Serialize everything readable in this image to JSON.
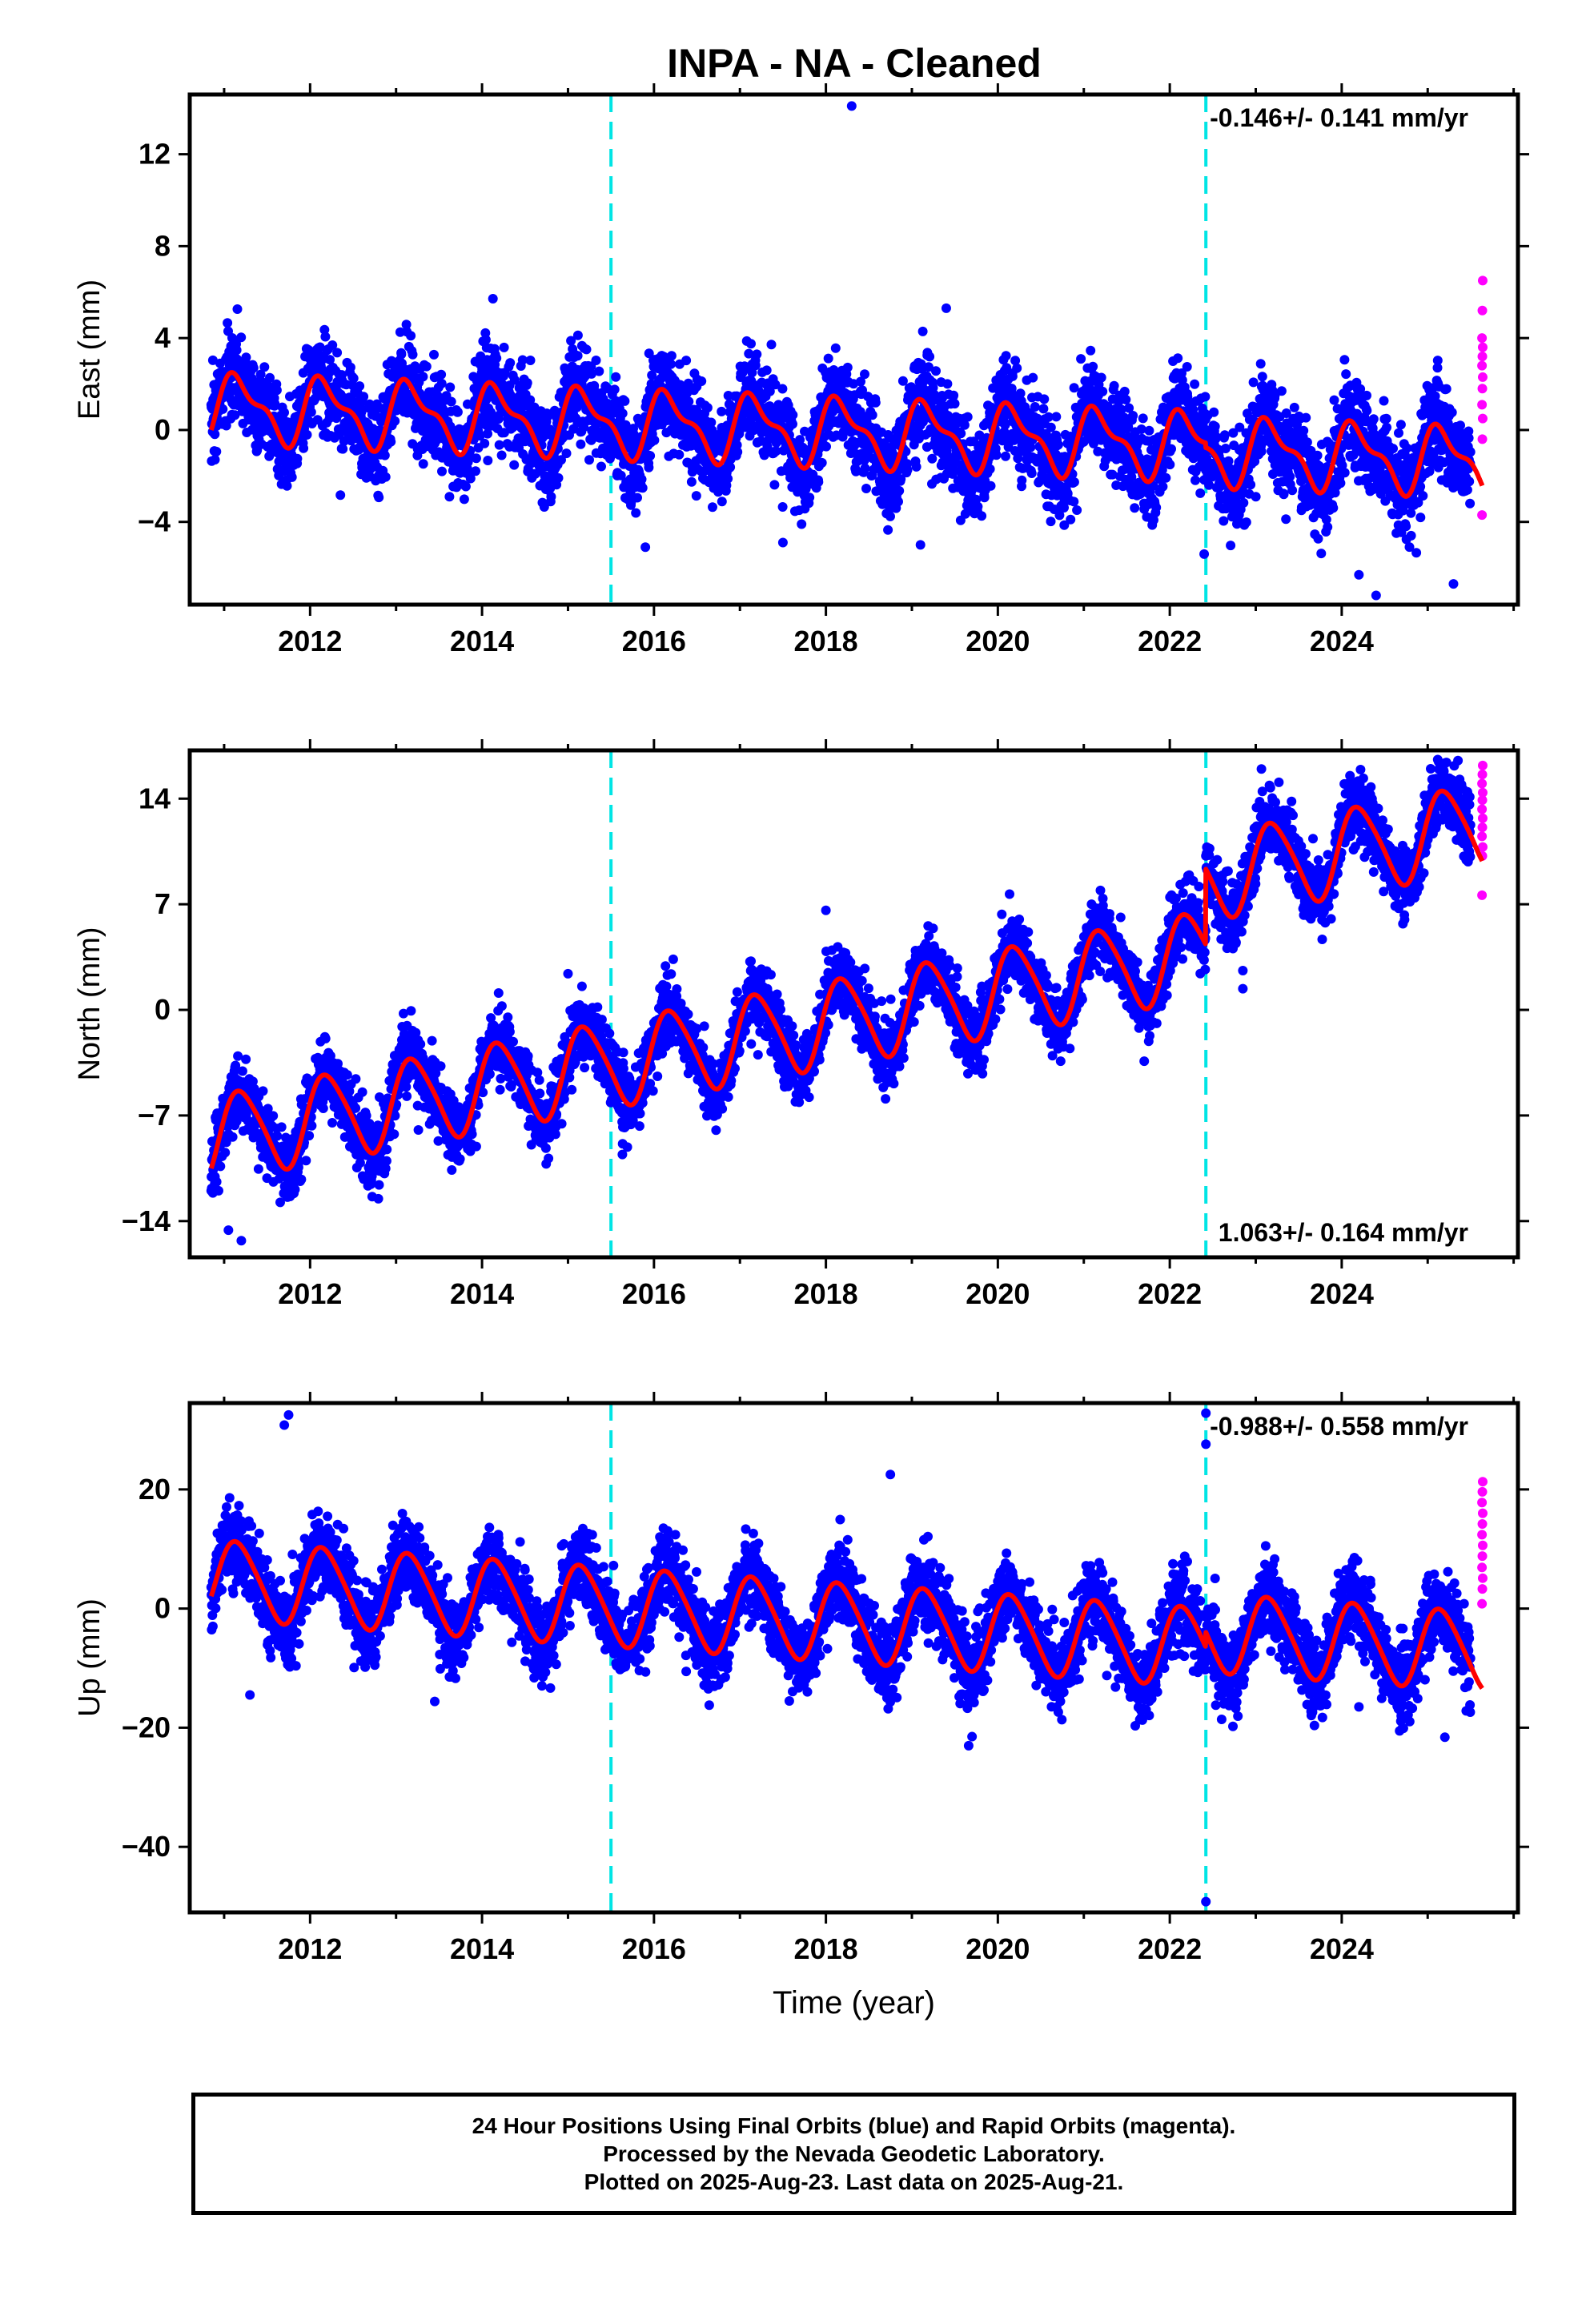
{
  "title": "INPA  - NA - Cleaned",
  "footer": [
    "24 Hour Positions Using Final Orbits (blue) and Rapid Orbits (magenta).",
    "Processed by the Nevada Geodetic Laboratory.",
    "Plotted on 2025-Aug-23. Last data on 2025-Aug-21."
  ],
  "colors": {
    "final_orbits": "#0000ff",
    "rapid_orbits": "#ff00ff",
    "model_fit": "#ff0000",
    "equipment_change_lines": "#00e5e5"
  },
  "chart_data": [
    {
      "type": "scatter",
      "panel": "east",
      "ylabel": "East (mm)",
      "xlabel": "",
      "xlim": [
        2010.6,
        2026.05
      ],
      "ylim": [
        -7.6,
        14.6
      ],
      "yticks": [
        -4,
        0,
        4,
        8,
        12
      ],
      "yticklabels": [
        "−4",
        "0",
        "4",
        "8",
        "12"
      ],
      "xticks": [
        2012,
        2014,
        2016,
        2018,
        2020,
        2022,
        2024
      ],
      "xticklabels": [
        "2012",
        "2014",
        "2016",
        "2018",
        "2020",
        "2022",
        "2024"
      ],
      "rate_label": "-0.146+/- 0.141 mm/yr",
      "rate_position": "top-right",
      "breaks": [
        2015.5,
        2022.42
      ],
      "data_start": 2010.85,
      "data_end": 2025.64,
      "rapid_start": 2025.5,
      "model": {
        "offset_at_start": 1.0,
        "rate": -0.146,
        "annual_amp": 1.3,
        "annual_phase": 0.45,
        "semiannual_amp": 0.55,
        "semiannual_phase": 1.1,
        "step_offsets": [
          0,
          -0.2
        ]
      },
      "noise_sd": 1.0,
      "outliers": [
        [
          2018.3,
          14.1
        ],
        [
          2019.4,
          5.3
        ],
        [
          2015.9,
          -5.1
        ],
        [
          2017.5,
          -4.9
        ],
        [
          2024.4,
          -7.2
        ],
        [
          2024.2,
          -6.3
        ],
        [
          2025.3,
          -6.7
        ],
        [
          2019.1,
          -5.0
        ],
        [
          2022.4,
          -5.4
        ]
      ],
      "rapid_values": [
        6.5,
        5.2,
        4.0,
        3.6,
        3.2,
        2.8,
        2.3,
        1.8,
        1.1,
        0.5,
        -0.4,
        -3.7
      ]
    },
    {
      "type": "scatter",
      "panel": "north",
      "ylabel": "North (mm)",
      "xlabel": "",
      "xlim": [
        2010.6,
        2026.05
      ],
      "ylim": [
        -16.4,
        17.2
      ],
      "yticks": [
        -14,
        -7,
        0,
        7,
        14
      ],
      "yticklabels": [
        "−14",
        "−7",
        "0",
        "7",
        "14"
      ],
      "xticks": [
        2012,
        2014,
        2016,
        2018,
        2020,
        2022,
        2024
      ],
      "xticklabels": [
        "2012",
        "2014",
        "2016",
        "2018",
        "2020",
        "2022",
        "2024"
      ],
      "rate_label": "1.063+/- 0.164 mm/yr",
      "rate_position": "bottom-right",
      "breaks": [
        2015.5,
        2022.42
      ],
      "data_start": 2010.85,
      "data_end": 2025.64,
      "rapid_start": 2025.5,
      "model": {
        "offset_at_start": -8.5,
        "rate": 1.063,
        "annual_amp": 2.8,
        "annual_phase": 0.3,
        "semiannual_amp": 0.4,
        "semiannual_phase": 0.9,
        "step_offsets": [
          0,
          5.0
        ]
      },
      "noise_sd": 1.1,
      "outliers": [
        [
          2011.2,
          -15.3
        ],
        [
          2011.05,
          -14.6
        ],
        [
          2022.85,
          2.6
        ],
        [
          2022.85,
          1.4
        ],
        [
          2015.0,
          2.4
        ],
        [
          2018.0,
          6.6
        ]
      ],
      "rapid_values": [
        16.2,
        15.6,
        15.0,
        14.4,
        13.9,
        13.3,
        12.7,
        12.1,
        11.5,
        10.8,
        10.2,
        7.6
      ]
    },
    {
      "type": "scatter",
      "panel": "up",
      "ylabel": "Up (mm)",
      "xlabel": "Time (year)",
      "xlim": [
        2010.6,
        2026.05
      ],
      "ylim": [
        -51,
        34.5
      ],
      "yticks": [
        -40,
        -20,
        0,
        20
      ],
      "yticklabels": [
        "−40",
        "−20",
        "0",
        "20"
      ],
      "xticks": [
        2012,
        2014,
        2016,
        2018,
        2020,
        2022,
        2024
      ],
      "xticklabels": [
        "2012",
        "2014",
        "2016",
        "2018",
        "2020",
        "2022",
        "2024"
      ],
      "rate_label": "-0.988+/- 0.558 mm/yr",
      "rate_position": "top-right",
      "breaks": [
        2015.5,
        2022.42
      ],
      "data_start": 2010.85,
      "data_end": 2025.64,
      "rapid_start": 2025.5,
      "model": {
        "offset_at_start": 5.0,
        "rate": -0.988,
        "annual_amp": 6.5,
        "annual_phase": 0.55,
        "semiannual_amp": 0.8,
        "semiannual_phase": 1.3,
        "step_offsets": [
          0,
          2.5
        ]
      },
      "noise_sd": 3.3,
      "outliers": [
        [
          2011.75,
          32.5
        ],
        [
          2011.7,
          30.8
        ],
        [
          2022.42,
          32.8
        ],
        [
          2022.42,
          27.6
        ],
        [
          2022.42,
          -49.2
        ],
        [
          2013.45,
          -15.6
        ],
        [
          2011.3,
          -14.5
        ],
        [
          2019.7,
          -21.5
        ],
        [
          2024.2,
          -16.5
        ],
        [
          2025.2,
          -21.6
        ],
        [
          2018.75,
          22.5
        ]
      ],
      "rapid_values": [
        21.3,
        19.6,
        17.8,
        16.0,
        14.2,
        12.4,
        10.6,
        8.8,
        6.9,
        5.1,
        3.3,
        0.8
      ]
    }
  ]
}
